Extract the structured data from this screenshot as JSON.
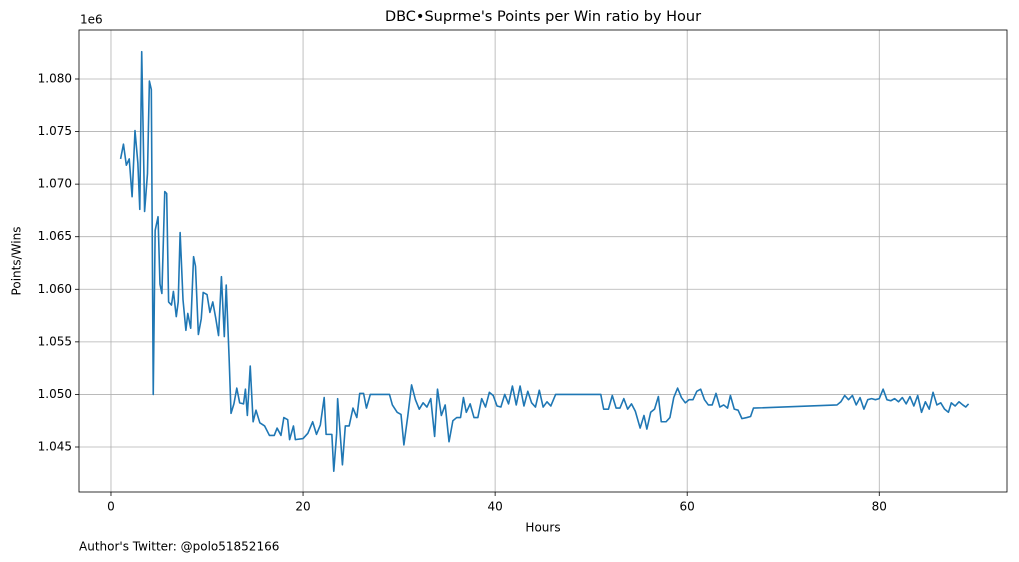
{
  "chart_data": {
    "type": "line",
    "title": "DBC•Suprme's Points per Win ratio by Hour",
    "xlabel": "Hours",
    "ylabel": "Points/Wins",
    "y_offset_label": "1e6",
    "annotation": "Author's Twitter: @polo51852166",
    "grid": true,
    "xlim": [
      -3.33,
      93.3
    ],
    "ylim": [
      1.04072,
      1.08466
    ],
    "xticks": [
      0,
      20,
      40,
      60,
      80
    ],
    "yticks": [
      1.045,
      {
        "value": 1.05,
        "label": "1.050"
      },
      1.055,
      {
        "value": 1.06,
        "label": "1.060"
      },
      1.065,
      {
        "value": 1.07,
        "label": "1.070"
      },
      1.075,
      {
        "value": 1.08,
        "label": "1.080"
      }
    ],
    "x": [
      1.0,
      1.3,
      1.6,
      1.9,
      2.2,
      2.5,
      2.8,
      3.0,
      3.2,
      3.5,
      3.8,
      4.0,
      4.2,
      4.4,
      4.6,
      4.9,
      5.1,
      5.3,
      5.6,
      5.8,
      6.0,
      6.3,
      6.5,
      6.8,
      7.0,
      7.2,
      7.5,
      7.8,
      8.0,
      8.3,
      8.6,
      8.8,
      9.1,
      9.4,
      9.6,
      10.0,
      10.3,
      10.6,
      10.9,
      11.2,
      11.5,
      11.8,
      12.0,
      12.3,
      12.5,
      12.8,
      13.1,
      13.4,
      13.8,
      14.0,
      14.2,
      14.5,
      14.8,
      15.1,
      15.5,
      16.0,
      16.5,
      17.0,
      17.3,
      17.7,
      18.0,
      18.4,
      18.6,
      19.0,
      19.2,
      20.0,
      20.5,
      21.0,
      21.4,
      21.8,
      22.2,
      22.4,
      23.0,
      23.2,
      23.5,
      23.6,
      24.1,
      24.4,
      24.8,
      25.2,
      25.6,
      25.9,
      26.3,
      26.6,
      27.0,
      29.0,
      29.3,
      29.8,
      30.2,
      30.5,
      30.9,
      31.3,
      31.7,
      32.1,
      32.5,
      32.9,
      33.3,
      33.7,
      34.0,
      34.4,
      34.8,
      35.2,
      35.6,
      36.0,
      36.4,
      36.7,
      37.0,
      37.4,
      37.8,
      38.2,
      38.6,
      39.0,
      39.4,
      39.8,
      40.2,
      40.6,
      41.0,
      41.4,
      41.8,
      42.2,
      42.6,
      43.0,
      43.4,
      43.8,
      44.2,
      44.6,
      45.0,
      45.4,
      45.8,
      46.3,
      51.0,
      51.3,
      51.8,
      52.2,
      52.6,
      53.0,
      53.4,
      53.8,
      54.2,
      54.6,
      55.1,
      55.5,
      55.8,
      56.2,
      56.6,
      57.0,
      57.3,
      57.8,
      58.2,
      58.6,
      59.0,
      59.4,
      59.8,
      60.2,
      60.6,
      61.0,
      61.4,
      61.8,
      62.2,
      62.6,
      63.0,
      63.4,
      63.8,
      64.2,
      64.5,
      64.9,
      65.3,
      65.7,
      66.2,
      66.6,
      66.9,
      75.6,
      76.0,
      76.4,
      76.8,
      77.2,
      77.6,
      78.0,
      78.4,
      78.8,
      79.2,
      79.6,
      80.0,
      80.4,
      80.8,
      81.2,
      81.6,
      82.0,
      82.4,
      82.8,
      83.2,
      83.6,
      84.0,
      84.4,
      84.8,
      85.2,
      85.6,
      86.0,
      86.4,
      86.8,
      87.2,
      87.5,
      87.9,
      88.3,
      88.7,
      89.0,
      89.3
    ],
    "series": [
      {
        "color": "#1f77b4",
        "values": [
          1.0724,
          1.0738,
          1.0718,
          1.0724,
          1.0688,
          1.0751,
          1.072,
          1.0676,
          1.0826,
          1.0674,
          1.071,
          1.0798,
          1.079,
          1.05,
          1.0656,
          1.0669,
          1.0605,
          1.0596,
          1.0693,
          1.0691,
          1.0588,
          1.0585,
          1.0598,
          1.0574,
          1.0588,
          1.0654,
          1.059,
          1.0561,
          1.0577,
          1.0563,
          1.0631,
          1.0622,
          1.0557,
          1.0572,
          1.0597,
          1.0595,
          1.0578,
          1.0588,
          1.0573,
          1.0556,
          1.0612,
          1.0555,
          1.0604,
          1.0535,
          1.0482,
          1.0491,
          1.0506,
          1.0492,
          1.0491,
          1.0505,
          1.048,
          1.0527,
          1.0474,
          1.0485,
          1.0473,
          1.047,
          1.0461,
          1.0461,
          1.0468,
          1.0461,
          1.0478,
          1.0476,
          1.0457,
          1.047,
          1.0457,
          1.0458,
          1.0463,
          1.0474,
          1.0462,
          1.0471,
          1.0497,
          1.0462,
          1.0462,
          1.0427,
          1.0463,
          1.0496,
          1.0433,
          1.047,
          1.047,
          1.0487,
          1.0478,
          1.0501,
          1.0501,
          1.0487,
          1.05,
          1.05,
          1.049,
          1.0483,
          1.0481,
          1.0452,
          1.0479,
          1.0509,
          1.0495,
          1.0486,
          1.0492,
          1.0488,
          1.0496,
          1.046,
          1.0505,
          1.048,
          1.049,
          1.0455,
          1.0475,
          1.0478,
          1.0478,
          1.0497,
          1.0483,
          1.0491,
          1.0478,
          1.0478,
          1.0496,
          1.0488,
          1.0502,
          1.0499,
          1.0489,
          1.0488,
          1.05,
          1.0491,
          1.0508,
          1.049,
          1.0508,
          1.0489,
          1.0503,
          1.0492,
          1.0488,
          1.0504,
          1.0488,
          1.0493,
          1.0489,
          1.05,
          1.05,
          1.0486,
          1.0486,
          1.0499,
          1.0487,
          1.0487,
          1.0496,
          1.0486,
          1.0491,
          1.0484,
          1.0468,
          1.048,
          1.0467,
          1.0483,
          1.0486,
          1.0498,
          1.0474,
          1.0474,
          1.0478,
          1.0497,
          1.0506,
          1.0497,
          1.0492,
          1.0495,
          1.0495,
          1.0503,
          1.0505,
          1.0495,
          1.049,
          1.049,
          1.0501,
          1.0488,
          1.049,
          1.0487,
          1.0499,
          1.0486,
          1.0485,
          1.0477,
          1.0478,
          1.0479,
          1.0487,
          1.049,
          1.0493,
          1.0499,
          1.0495,
          1.0499,
          1.049,
          1.0497,
          1.0486,
          1.0495,
          1.0496,
          1.0495,
          1.0496,
          1.0505,
          1.0495,
          1.0494,
          1.0496,
          1.0493,
          1.0497,
          1.0491,
          1.0498,
          1.0489,
          1.0499,
          1.0483,
          1.0493,
          1.0486,
          1.0502,
          1.049,
          1.0492,
          1.0486,
          1.0483,
          1.0492,
          1.0489,
          1.0493,
          1.049,
          1.0488,
          1.0491
        ]
      }
    ]
  }
}
